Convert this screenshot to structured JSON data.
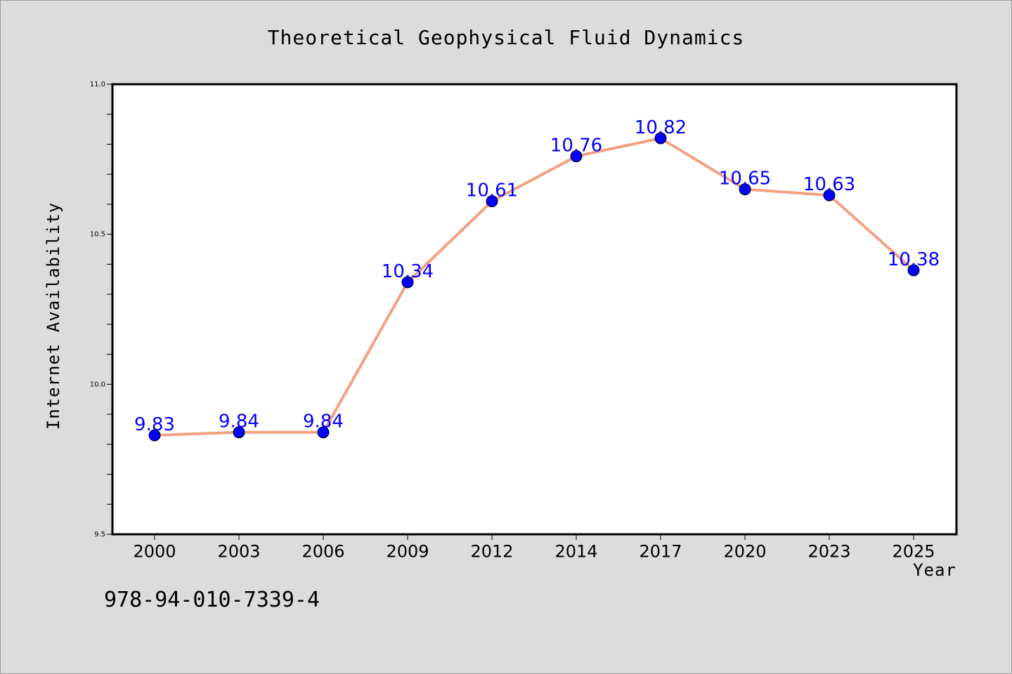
{
  "chart_data": {
    "type": "line",
    "title": "Theoretical Geophysical Fluid Dynamics",
    "xlabel": "Year",
    "ylabel": "Internet Availability",
    "categories": [
      "2000",
      "2003",
      "2006",
      "2009",
      "2012",
      "2014",
      "2017",
      "2020",
      "2023",
      "2025"
    ],
    "series": [
      {
        "values": [
          9.83,
          9.84,
          9.84,
          10.34,
          10.61,
          10.76,
          10.82,
          10.65,
          10.63,
          10.38
        ],
        "labels": [
          "9.83",
          "9.84",
          "9.84",
          "10.34",
          "10.61",
          "10.76",
          "10.82",
          "10.65",
          "10.63",
          "10.38"
        ],
        "line_color": "#f4a07f",
        "marker_color": "#0000ff"
      }
    ],
    "ylim": [
      9.5,
      11.0
    ],
    "yticks": [
      "9.5",
      "10.0",
      "10.5",
      "11.0"
    ],
    "grid": false,
    "legend": "none"
  },
  "footer_text": "978-94-010-7339-4"
}
